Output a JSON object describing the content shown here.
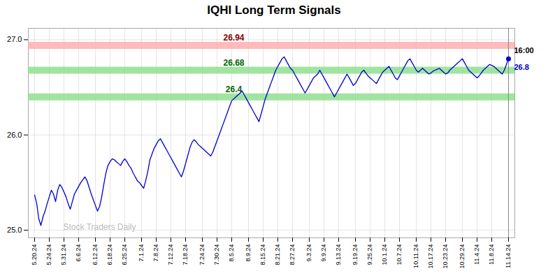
{
  "chart_data": {
    "type": "line",
    "title": "IQHI Long Term Signals",
    "categories": [
      "5.20.24",
      null,
      null,
      null,
      null,
      null,
      null,
      "5.24.24",
      null,
      null,
      null,
      null,
      null,
      null,
      "5.31.24",
      null,
      null,
      null,
      null,
      null,
      null,
      "6.6.24",
      null,
      null,
      null,
      null,
      null,
      null,
      null,
      "6.12.24",
      null,
      null,
      null,
      null,
      null,
      null,
      "6.18.24",
      null,
      null,
      null,
      null,
      null,
      null,
      "6.25.24",
      null,
      null,
      null,
      null,
      null,
      null,
      null,
      "7.1.24",
      null,
      null,
      null,
      null,
      null,
      null,
      "7.8.24",
      null,
      null,
      null,
      null,
      null,
      null,
      "7.12.24",
      null,
      null,
      null,
      null,
      null,
      null,
      "7.18.24",
      null,
      null,
      null,
      null,
      null,
      null,
      null,
      "7.24.24",
      null,
      null,
      null,
      null,
      null,
      null,
      "7.30.24",
      null,
      null,
      null,
      null,
      null,
      null,
      "8.5.24",
      null,
      null,
      null,
      null,
      null,
      null,
      null,
      "8.9.24",
      null,
      null,
      null,
      null,
      null,
      null,
      "8.15.24",
      null,
      null,
      null,
      null,
      null,
      null,
      "8.21.24",
      null,
      null,
      null,
      null,
      null,
      null,
      "8.27.24",
      null,
      null,
      null,
      null,
      null,
      null,
      null,
      "9.3.24",
      null,
      null,
      null,
      null,
      null,
      null,
      "9.9.24",
      null,
      null,
      null,
      null,
      null,
      null,
      "9.13.24",
      null,
      null,
      null,
      null,
      null,
      null,
      null,
      "9.19.24",
      null,
      null,
      null,
      null,
      null,
      null,
      "9.25.24",
      null,
      null,
      null,
      null,
      null,
      null,
      "10.1.24",
      null,
      null,
      null,
      null,
      null,
      null,
      "10.7.24",
      null,
      null,
      null,
      null,
      null,
      null,
      null,
      "10.11.24",
      null,
      null,
      null,
      null,
      null,
      null,
      "10.17.24",
      null,
      null,
      null,
      null,
      null,
      null,
      "10.23.24",
      null,
      null,
      null,
      null,
      null,
      null,
      null,
      "10.29.24",
      null,
      null,
      null,
      null,
      null,
      null,
      "11.4.24",
      null,
      null,
      null,
      null,
      null,
      null,
      "11.8.24",
      null,
      null,
      null,
      null,
      null,
      null,
      null,
      "11.14.24"
    ],
    "values": [
      25.37,
      25.28,
      25.12,
      25.05,
      25.14,
      25.2,
      25.28,
      25.35,
      25.42,
      25.38,
      25.3,
      25.42,
      25.48,
      25.45,
      25.4,
      25.35,
      25.28,
      25.22,
      25.3,
      25.38,
      25.42,
      25.46,
      25.5,
      25.53,
      25.56,
      25.52,
      25.45,
      25.38,
      25.32,
      25.26,
      25.2,
      25.25,
      25.35,
      25.48,
      25.6,
      25.68,
      25.72,
      25.75,
      25.74,
      25.72,
      25.7,
      25.68,
      25.72,
      25.75,
      25.72,
      25.68,
      25.65,
      25.6,
      25.56,
      25.52,
      25.5,
      25.47,
      25.44,
      25.52,
      25.62,
      25.74,
      25.8,
      25.86,
      25.9,
      25.94,
      25.96,
      25.92,
      25.88,
      25.84,
      25.8,
      25.76,
      25.72,
      25.68,
      25.64,
      25.6,
      25.56,
      25.62,
      25.7,
      25.78,
      25.86,
      25.92,
      25.95,
      25.93,
      25.9,
      25.88,
      25.86,
      25.84,
      25.82,
      25.8,
      25.78,
      25.82,
      25.88,
      25.94,
      26.0,
      26.06,
      26.12,
      26.18,
      26.24,
      26.3,
      26.36,
      26.38,
      26.4,
      26.42,
      26.44,
      26.46,
      26.42,
      26.38,
      26.34,
      26.3,
      26.26,
      26.22,
      26.18,
      26.14,
      26.22,
      26.3,
      26.38,
      26.44,
      26.5,
      26.56,
      26.62,
      26.68,
      26.72,
      26.76,
      26.8,
      26.82,
      26.78,
      26.74,
      26.7,
      26.68,
      26.64,
      26.6,
      26.56,
      26.52,
      26.48,
      26.44,
      26.48,
      26.52,
      26.56,
      26.6,
      26.62,
      26.64,
      26.68,
      26.64,
      26.6,
      26.56,
      26.52,
      26.48,
      26.44,
      26.4,
      26.44,
      26.48,
      26.52,
      26.56,
      26.6,
      26.64,
      26.6,
      26.56,
      26.52,
      26.54,
      26.58,
      26.62,
      26.66,
      26.68,
      26.65,
      26.62,
      26.6,
      26.58,
      26.56,
      26.54,
      26.58,
      26.62,
      26.66,
      26.68,
      26.7,
      26.72,
      26.68,
      26.64,
      26.6,
      26.58,
      26.62,
      26.66,
      26.7,
      26.74,
      26.78,
      26.8,
      26.76,
      26.72,
      26.68,
      26.66,
      26.68,
      26.7,
      26.68,
      26.66,
      26.64,
      26.65,
      26.67,
      26.68,
      26.69,
      26.7,
      26.68,
      26.66,
      26.64,
      26.65,
      26.68,
      26.7,
      26.72,
      26.74,
      26.76,
      26.78,
      26.8,
      26.76,
      26.72,
      26.68,
      26.66,
      26.64,
      26.62,
      26.6,
      26.62,
      26.65,
      26.68,
      26.7,
      26.72,
      26.74,
      26.73,
      26.72,
      26.7,
      26.68,
      26.66,
      26.64,
      26.68,
      26.74,
      26.8
    ],
    "color": "#0000cc",
    "ylim": [
      24.92,
      27.12
    ],
    "yticks": [
      25,
      26,
      27
    ],
    "grid": true,
    "hlines": [
      {
        "value": 26.94,
        "label": "26.94",
        "color": "#ffaaaa",
        "label_color": "#880000"
      },
      {
        "value": 26.68,
        "label": "26.68",
        "color": "#88dd88",
        "label_color": "#006600"
      },
      {
        "value": 26.4,
        "label": "26.4",
        "color": "#88dd88",
        "label_color": "#006600"
      }
    ],
    "end_line_color": "#888888",
    "end_labels": [
      {
        "text": "16:00",
        "color": "black"
      },
      {
        "text": "26.8",
        "color": "#0000cc"
      }
    ],
    "watermark": {
      "text": "Stock Traders Daily",
      "color": "#bbbbbb"
    }
  }
}
